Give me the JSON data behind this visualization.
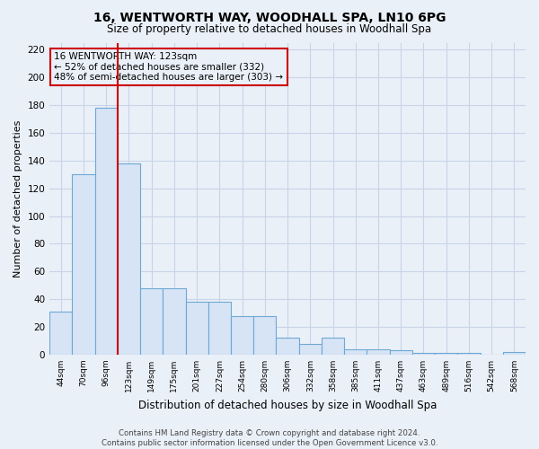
{
  "title": "16, WENTWORTH WAY, WOODHALL SPA, LN10 6PG",
  "subtitle": "Size of property relative to detached houses in Woodhall Spa",
  "xlabel": "Distribution of detached houses by size in Woodhall Spa",
  "ylabel": "Number of detached properties",
  "bin_labels": [
    "44sqm",
    "70sqm",
    "96sqm",
    "123sqm",
    "149sqm",
    "175sqm",
    "201sqm",
    "227sqm",
    "254sqm",
    "280sqm",
    "306sqm",
    "332sqm",
    "358sqm",
    "385sqm",
    "411sqm",
    "437sqm",
    "463sqm",
    "489sqm",
    "516sqm",
    "542sqm",
    "568sqm"
  ],
  "bar_heights": [
    31,
    130,
    178,
    138,
    48,
    48,
    38,
    38,
    28,
    28,
    12,
    8,
    12,
    4,
    4,
    3,
    1,
    1,
    1,
    0,
    2
  ],
  "bar_color": "#d6e4f5",
  "bar_edge_color": "#6fa8d4",
  "vline_index": 3,
  "vline_color": "#cc0000",
  "annotation_text": "16 WENTWORTH WAY: 123sqm\n← 52% of detached houses are smaller (332)\n48% of semi-detached houses are larger (303) →",
  "annotation_box_color": "#cc0000",
  "ylim": [
    0,
    225
  ],
  "yticks": [
    0,
    20,
    40,
    60,
    80,
    100,
    120,
    140,
    160,
    180,
    200,
    220
  ],
  "footer": "Contains HM Land Registry data © Crown copyright and database right 2024.\nContains public sector information licensed under the Open Government Licence v3.0.",
  "bg_color": "#eaf0f8",
  "plot_bg_color": "#eaf0f8",
  "grid_color": "#c8d4e8",
  "title_fontsize": 10,
  "subtitle_fontsize": 8.5,
  "xlabel_fontsize": 8.5,
  "ylabel_fontsize": 8
}
